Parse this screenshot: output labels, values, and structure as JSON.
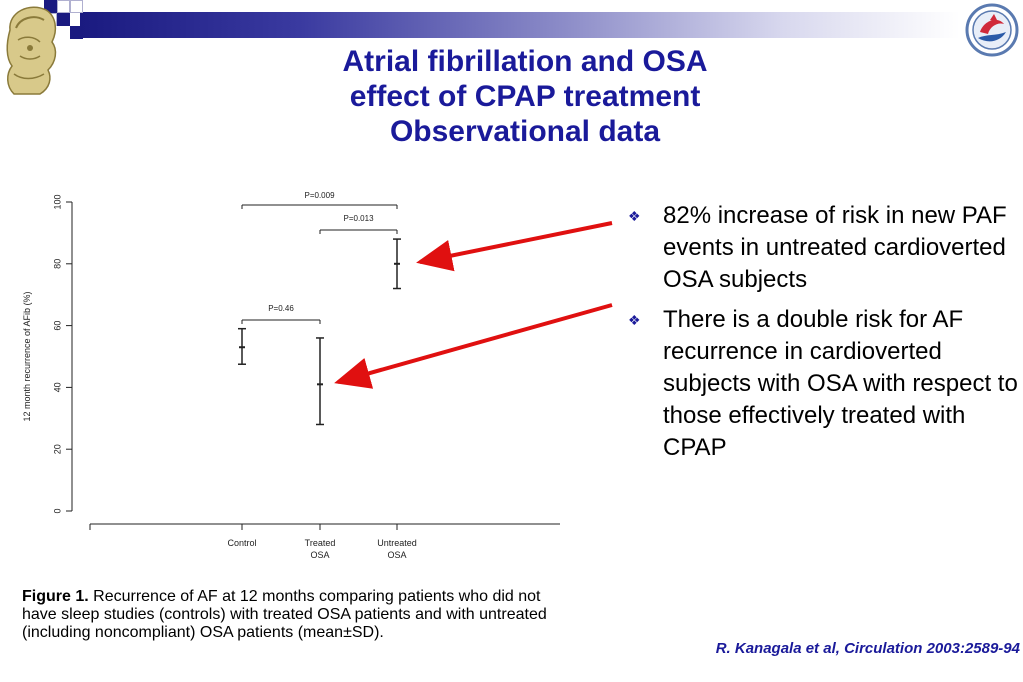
{
  "slide": {
    "title_lines": [
      "Atrial fibrillation and OSA",
      "effect of CPAP treatment",
      "Observational data"
    ],
    "bullets": [
      "82% increase of risk in new PAF events in untreated cardioverted OSA subjects",
      "There is a double risk for AF recurrence in cardioverted subjects with OSA with respect to those effectively treated with CPAP"
    ],
    "bullet_glyph": "❖",
    "citation": "R. Kanagala et al, Circulation 2003:2589-94",
    "caption_bold": "Figure 1.",
    "caption_text": " Recurrence of AF at 12 months comparing patients who did not have sleep studies (controls) with treated OSA patients and with untreated (including noncompliant) OSA patients (mean±SD).",
    "colors": {
      "title": "#1a1a9a",
      "arrow": "#e01010",
      "bar_dark": "#1a1a80"
    },
    "icons": {
      "left_logo": "athena-helmet-logo-icon",
      "right_logo": "society-emblem-icon"
    }
  },
  "chart_data": {
    "type": "errorbar",
    "ylabel": "12 month recurrence of AFib (%)",
    "ylim": [
      0,
      100
    ],
    "yticks": [
      0,
      20,
      40,
      60,
      80,
      100
    ],
    "categories": [
      "Control",
      "Treated OSA",
      "Untreated OSA"
    ],
    "category_lines": [
      [
        "Control"
      ],
      [
        "Treated",
        "OSA"
      ],
      [
        "Untreated",
        "OSA"
      ]
    ],
    "mean": [
      53,
      41,
      80
    ],
    "lower": [
      47.5,
      28,
      72
    ],
    "upper": [
      59,
      56,
      88
    ],
    "comparisons": [
      {
        "from": 0,
        "to": 2,
        "label": "P=0.009"
      },
      {
        "from": 1,
        "to": 2,
        "label": "P=0.013"
      },
      {
        "from": 0,
        "to": 1,
        "label": "P=0.46"
      }
    ],
    "grid": false
  }
}
